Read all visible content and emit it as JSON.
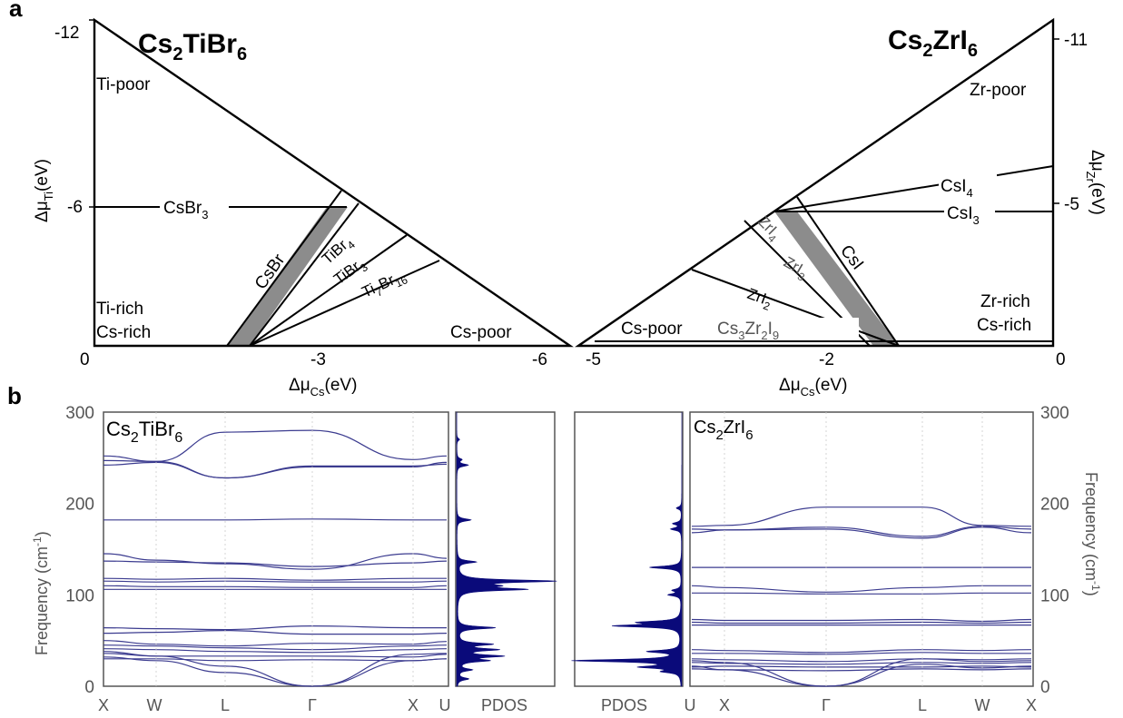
{
  "panel_a_label": "a",
  "panel_b_label": "b",
  "colors": {
    "phonon": "#3b3b8f",
    "pdos": "#0a0a7a",
    "stable_region": "#8c8c8c",
    "axis_text": "#555555"
  },
  "chart_data": [
    {
      "type": "diagram",
      "panel": "a-left",
      "title_main": "Cs",
      "title_sub1": "2",
      "title_mid": "TiBr",
      "title_sub2": "6",
      "xlabel_main": "Δμ",
      "xlabel_sub": "Cs",
      "xlabel_unit": "(eV)",
      "ylabel_main": "Δμ",
      "ylabel_sub": "Ti",
      "ylabel_unit": "(eV)",
      "x_ticks": [
        "0",
        "-3",
        "-6"
      ],
      "y_ticks": [
        "-12",
        "-6"
      ],
      "region_labels": {
        "ti_poor": "Ti-poor",
        "ti_rich": "Ti-rich",
        "cs_rich": "Cs-rich",
        "cs_poor": "Cs-poor"
      },
      "phase_labels": {
        "csbr3_a": "CsBr",
        "csbr3_b": "3",
        "csbr": "CsBr",
        "tibr4_a": "TiBr",
        "tibr4_b": "4",
        "tibr3_a": "TiBr",
        "tibr3_b": "3",
        "ti7br16_a": "Ti",
        "ti7br16_b": "7",
        "ti7br16_c": "Br",
        "ti7br16_d": "16"
      }
    },
    {
      "type": "diagram",
      "panel": "a-right",
      "title_main": "Cs",
      "title_sub1": "2",
      "title_mid": "ZrI",
      "title_sub2": "6",
      "xlabel_main": "Δμ",
      "xlabel_sub": "Cs",
      "xlabel_unit": "(eV)",
      "ylabel_main": "Δμ",
      "ylabel_sub": "Zr",
      "ylabel_unit": "(eV)",
      "x_ticks": [
        "-5",
        "-2",
        "0"
      ],
      "y_ticks": [
        "-11",
        "-5"
      ],
      "region_labels": {
        "zr_poor": "Zr-poor",
        "zr_rich": "Zr-rich",
        "cs_rich": "Cs-rich",
        "cs_poor": "Cs-poor"
      },
      "phase_labels": {
        "csi4_a": "CsI",
        "csi4_b": "4",
        "csi3_a": "CsI",
        "csi3_b": "3",
        "csi": "CsI",
        "zri4_a": "ZrI",
        "zri4_b": "4",
        "zri3_a": "ZrI",
        "zri3_b": "3",
        "zri2_a": "ZrI",
        "zri2_b": "2",
        "cs3zr2i9_a": "Cs",
        "cs3zr2i9_b": "3",
        "cs3zr2i9_c": "Zr",
        "cs3zr2i9_d": "2",
        "cs3zr2i9_e": "I",
        "cs3zr2i9_f": "9"
      }
    },
    {
      "type": "line",
      "panel": "b-left",
      "label_main": "Cs",
      "label_sub1": "2",
      "label_mid": "TiBr",
      "label_sub2": "6",
      "ylabel": "Frequency (cm",
      "ylabel_sup": "-1",
      "ylabel_end": ")",
      "ylim": [
        0,
        300
      ],
      "y_ticks": [
        "0",
        "100",
        "200",
        "300"
      ],
      "x_ticks": [
        "X",
        "W",
        "L",
        "Γ",
        "X",
        "U"
      ],
      "bands": [
        [
          247,
          246,
          228,
          240,
          240,
          245
        ],
        [
          252,
          246,
          278,
          280,
          248,
          252
        ],
        [
          242,
          245,
          228,
          241,
          241,
          243
        ],
        [
          182,
          182,
          182,
          183,
          182,
          182
        ],
        [
          145,
          138,
          134,
          128,
          145,
          140
        ],
        [
          137,
          136,
          135,
          131,
          135,
          137
        ],
        [
          118,
          117,
          118,
          116,
          118,
          118
        ],
        [
          115,
          114,
          115,
          114,
          114,
          115
        ],
        [
          110,
          109,
          109,
          108,
          108,
          110
        ],
        [
          106,
          106,
          106,
          106,
          106,
          106
        ],
        [
          64,
          63,
          62,
          66,
          64,
          64
        ],
        [
          58,
          59,
          61,
          57,
          57,
          58
        ],
        [
          50,
          46,
          44,
          47,
          46,
          49
        ],
        [
          45,
          44,
          42,
          40,
          44,
          45
        ],
        [
          41,
          40,
          38,
          37,
          40,
          41
        ],
        [
          36,
          33,
          33,
          33,
          32,
          35
        ],
        [
          30,
          30,
          28,
          29,
          28,
          30
        ],
        [
          38,
          33,
          22,
          0,
          35,
          36
        ],
        [
          32,
          28,
          15,
          0,
          28,
          30
        ]
      ]
    },
    {
      "type": "area",
      "panel": "b-pdos-left",
      "xlabel": "PDOS",
      "peaks": [
        [
          115,
          1.0
        ],
        [
          106,
          0.68
        ],
        [
          110,
          0.3
        ],
        [
          64,
          0.4
        ],
        [
          46,
          0.35
        ],
        [
          40,
          0.4
        ],
        [
          33,
          0.45
        ],
        [
          28,
          0.3
        ],
        [
          18,
          0.15
        ],
        [
          8,
          0.12
        ],
        [
          136,
          0.2
        ],
        [
          182,
          0.15
        ],
        [
          242,
          0.12
        ],
        [
          248,
          0.05
        ],
        [
          270,
          0.03
        ]
      ]
    },
    {
      "type": "area",
      "panel": "b-pdos-right",
      "xlabel": "PDOS",
      "peaks": [
        [
          28,
          1.0
        ],
        [
          21,
          0.35
        ],
        [
          16,
          0.15
        ],
        [
          38,
          0.3
        ],
        [
          66,
          0.6
        ],
        [
          70,
          0.35
        ],
        [
          100,
          0.12
        ],
        [
          105,
          0.08
        ],
        [
          130,
          0.3
        ],
        [
          172,
          0.1
        ],
        [
          178,
          0.08
        ],
        [
          195,
          0.05
        ]
      ]
    },
    {
      "type": "line",
      "panel": "b-right",
      "label_main": "Cs",
      "label_sub1": "2",
      "label_mid": "ZrI",
      "label_sub2": "6",
      "ylabel": "Frequency (cm",
      "ylabel_sup": "-1",
      "ylabel_end": ")",
      "ylim": [
        0,
        300
      ],
      "y_ticks": [
        "0",
        "100",
        "200",
        "300"
      ],
      "x_ticks": [
        "U",
        "X",
        "Γ",
        "L",
        "W",
        "X"
      ],
      "bands": [
        [
          175,
          176,
          196,
          196,
          176,
          175
        ],
        [
          172,
          171,
          174,
          164,
          175,
          172
        ],
        [
          168,
          171,
          172,
          162,
          174,
          168
        ],
        [
          130,
          130,
          130,
          130,
          130,
          130
        ],
        [
          110,
          108,
          103,
          108,
          110,
          110
        ],
        [
          102,
          102,
          101,
          101,
          102,
          102
        ],
        [
          73,
          72,
          72,
          73,
          71,
          73
        ],
        [
          70,
          69,
          69,
          70,
          69,
          70
        ],
        [
          67,
          67,
          67,
          67,
          67,
          67
        ],
        [
          40,
          39,
          37,
          40,
          39,
          40
        ],
        [
          36,
          36,
          35,
          37,
          36,
          36
        ],
        [
          30,
          29,
          27,
          30,
          29,
          30
        ],
        [
          26,
          25,
          24,
          26,
          25,
          26
        ],
        [
          21,
          22,
          21,
          21,
          22,
          21
        ],
        [
          19,
          18,
          17,
          19,
          18,
          19
        ],
        [
          28,
          26,
          0,
          30,
          27,
          28
        ],
        [
          22,
          18,
          0,
          24,
          20,
          22
        ]
      ]
    }
  ]
}
